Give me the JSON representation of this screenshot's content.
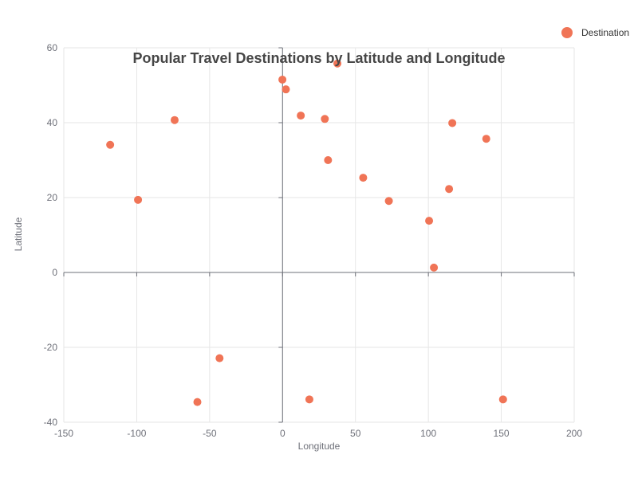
{
  "chart_data": {
    "type": "scatter",
    "title": "Popular Travel Destinations by Latitude and Longitude",
    "xlabel": "Longitude",
    "ylabel": "Latitude",
    "xlim": [
      -150,
      200
    ],
    "ylim": [
      -40,
      60
    ],
    "xticks": [
      -150,
      -100,
      -50,
      0,
      50,
      100,
      150,
      200
    ],
    "yticks": [
      -40,
      -20,
      0,
      20,
      40,
      60
    ],
    "grid": true,
    "legend_position": "top-right",
    "series": [
      {
        "name": "Destination",
        "color": "#f07456",
        "points": [
          {
            "x": -118.2,
            "y": 34.1
          },
          {
            "x": -99.1,
            "y": 19.4
          },
          {
            "x": -74.0,
            "y": 40.7
          },
          {
            "x": -58.4,
            "y": -34.6
          },
          {
            "x": -43.2,
            "y": -22.9
          },
          {
            "x": -0.1,
            "y": 51.5
          },
          {
            "x": 2.3,
            "y": 48.9
          },
          {
            "x": 12.5,
            "y": 41.9
          },
          {
            "x": 18.4,
            "y": -33.9
          },
          {
            "x": 29.0,
            "y": 41.0
          },
          {
            "x": 31.2,
            "y": 30.0
          },
          {
            "x": 37.6,
            "y": 55.8
          },
          {
            "x": 55.3,
            "y": 25.3
          },
          {
            "x": 72.9,
            "y": 19.1
          },
          {
            "x": 100.5,
            "y": 13.8
          },
          {
            "x": 103.8,
            "y": 1.3
          },
          {
            "x": 114.2,
            "y": 22.3
          },
          {
            "x": 116.4,
            "y": 39.9
          },
          {
            "x": 139.7,
            "y": 35.7
          },
          {
            "x": 151.2,
            "y": -33.9
          }
        ]
      }
    ]
  }
}
